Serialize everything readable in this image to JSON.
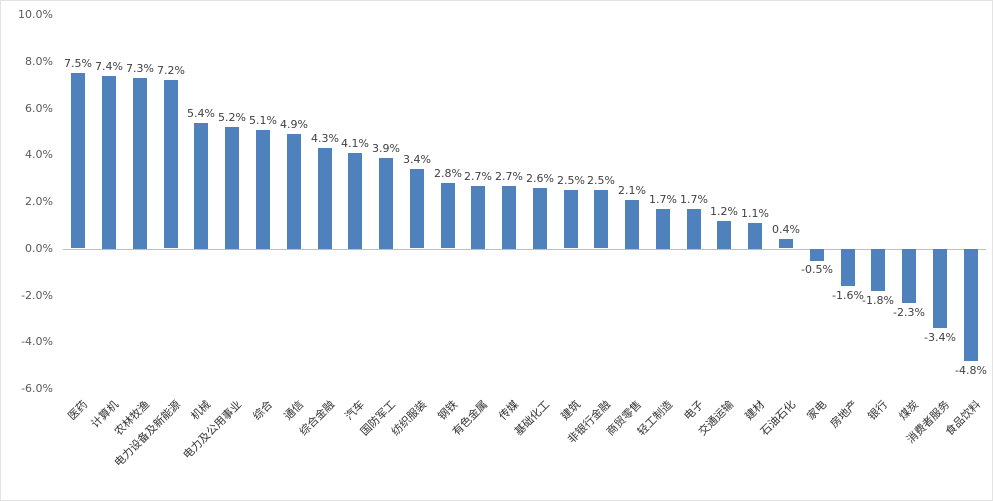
{
  "chart_data": {
    "type": "bar",
    "title": "",
    "xlabel": "",
    "ylabel": "",
    "categories": [
      "医药",
      "计算机",
      "农林牧渔",
      "电力设备及新能源",
      "机械",
      "电力及公用事业",
      "综合",
      "通信",
      "综合金融",
      "汽车",
      "国防军工",
      "纺织服装",
      "钢铁",
      "有色金属",
      "传媒",
      "基础化工",
      "建筑",
      "非银行金融",
      "商贸零售",
      "轻工制造",
      "电子",
      "交通运输",
      "建材",
      "石油石化",
      "家电",
      "房地产",
      "银行",
      "煤炭",
      "消费者服务",
      "食品饮料"
    ],
    "values": [
      7.5,
      7.4,
      7.3,
      7.2,
      5.4,
      5.2,
      5.1,
      4.9,
      4.3,
      4.1,
      3.9,
      3.4,
      2.8,
      2.7,
      2.7,
      2.6,
      2.5,
      2.5,
      2.1,
      1.7,
      1.7,
      1.2,
      1.1,
      0.4,
      -0.5,
      -1.6,
      -1.8,
      -2.3,
      -3.4,
      -4.8
    ],
    "value_labels": [
      "7.5%",
      "7.4%",
      "7.3%",
      "7.2%",
      "5.4%",
      "5.2%",
      "5.1%",
      "4.9%",
      "4.3%",
      "4.1%",
      "3.9%",
      "3.4%",
      "2.8%",
      "2.7%",
      "2.7%",
      "2.6%",
      "2.5%",
      "2.5%",
      "2.1%",
      "1.7%",
      "1.7%",
      "1.2%",
      "1.1%",
      "0.4%",
      "-0.5%",
      "-1.6%",
      "-1.8%",
      "-2.3%",
      "-3.4%",
      "-4.8%"
    ],
    "ylim": [
      -6,
      10
    ],
    "y_ticks": [
      10,
      8,
      6,
      4,
      2,
      0,
      -2,
      -4,
      -6
    ],
    "y_tick_labels": [
      "10.0%",
      "8.0%",
      "6.0%",
      "4.0%",
      "2.0%",
      "0.0%",
      "-2.0%",
      "-4.0%",
      "-6.0%"
    ],
    "grid": false,
    "legend": false,
    "bar_color": "#4F81BD",
    "axis_line_color": "#bfbfbf"
  }
}
